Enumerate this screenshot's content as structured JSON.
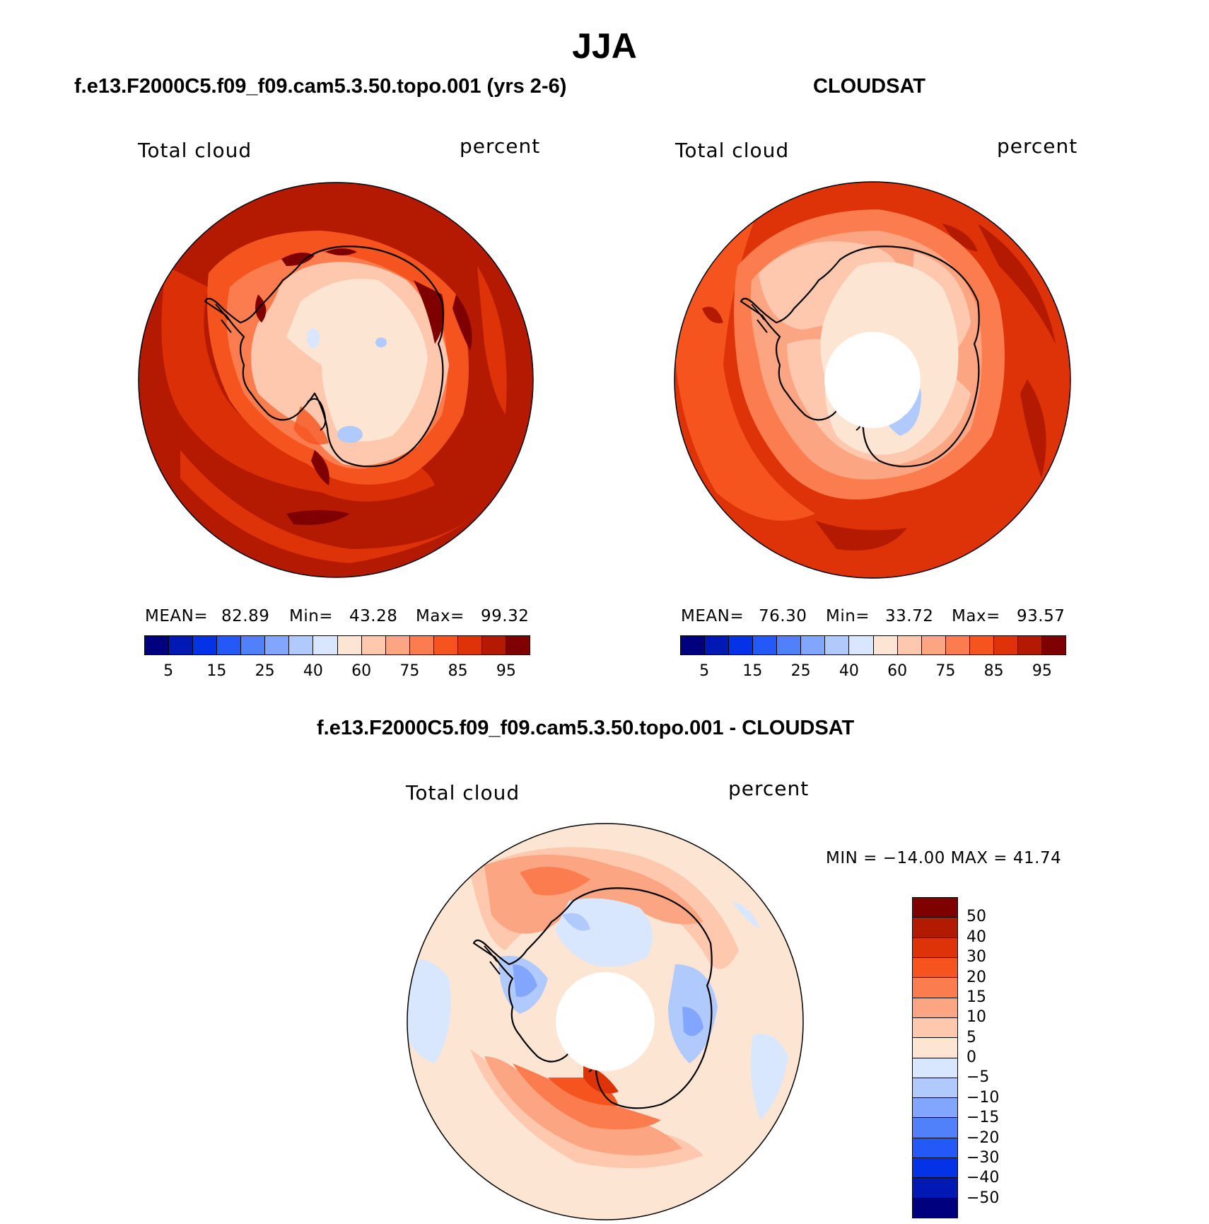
{
  "title": "JJA",
  "colors": {
    "seq": [
      "#00007f",
      "#0018b4",
      "#0432e6",
      "#2459f8",
      "#5180fb",
      "#82a6fd",
      "#b1cafd",
      "#d8e7fd",
      "#fde5d3",
      "#fdc8ae",
      "#fca582",
      "#fb7d4f",
      "#f5541e",
      "#de3208",
      "#b41a02",
      "#7f0000"
    ],
    "diff": [
      "#7f0000",
      "#b41a02",
      "#de3208",
      "#f5541e",
      "#fb7d4f",
      "#fca582",
      "#fdc8ae",
      "#fde5d3",
      "#d8e7fd",
      "#b1cafd",
      "#82a6fd",
      "#5180fb",
      "#2459f8",
      "#0432e6",
      "#0018b4",
      "#00007f"
    ]
  },
  "panels": {
    "model": {
      "title": "f.e13.F2000C5.f09_f09.cam5.3.50.topo.001 (yrs 2-6)",
      "left_label": "Total cloud",
      "right_label": "percent",
      "stats": {
        "mean_label": "MEAN=",
        "mean": "82.89",
        "min_label": "Min=",
        "min": "43.28",
        "max_label": "Max=",
        "max": "99.32"
      },
      "colorbar_ticks": [
        "5",
        "15",
        "25",
        "40",
        "60",
        "75",
        "85",
        "95"
      ]
    },
    "obs": {
      "title": "CLOUDSAT",
      "left_label": "Total cloud",
      "right_label": "percent",
      "stats": {
        "mean_label": "MEAN=",
        "mean": "76.30",
        "min_label": "Min=",
        "min": "33.72",
        "max_label": "Max=",
        "max": "93.57"
      },
      "colorbar_ticks": [
        "5",
        "15",
        "25",
        "40",
        "60",
        "75",
        "85",
        "95"
      ]
    },
    "diff": {
      "title": "f.e13.F2000C5.f09_f09.cam5.3.50.topo.001 - CLOUDSAT",
      "left_label": "Total cloud",
      "right_label": "percent",
      "minmax": "MIN = −14.00 MAX =   41.74",
      "colorbar_ticks": [
        "50",
        "40",
        "30",
        "20",
        "15",
        "10",
        "5",
        "0",
        "−5",
        "−10",
        "−15",
        "−20",
        "−30",
        "−40",
        "−50"
      ]
    }
  }
}
